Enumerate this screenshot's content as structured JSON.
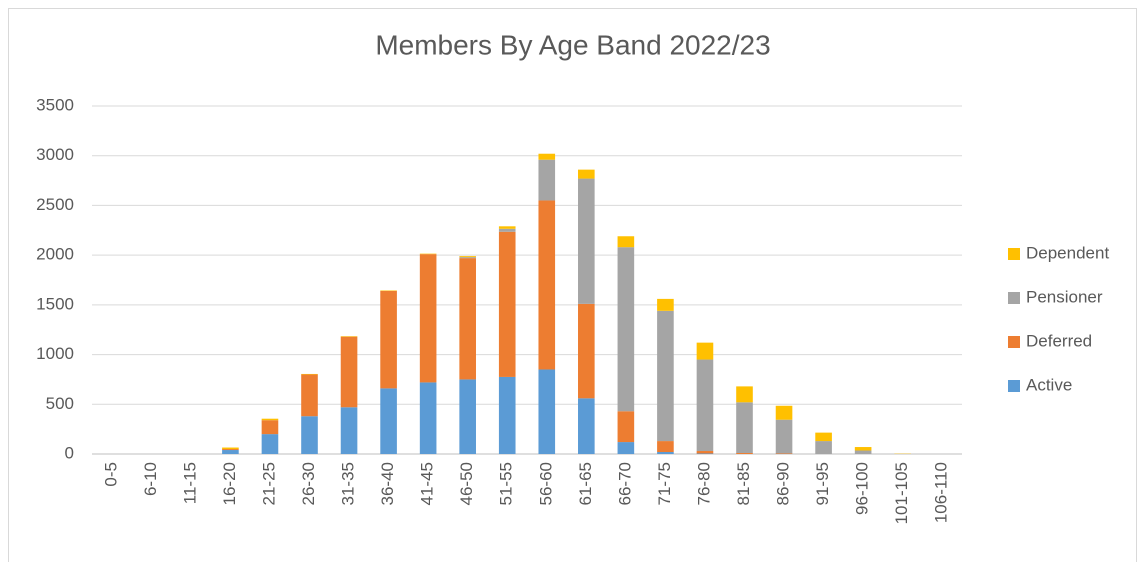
{
  "chart_data": {
    "type": "bar",
    "stacked": true,
    "title": "Members By Age Band 2022/23",
    "categories": [
      "0-5",
      "6-10",
      "11-15",
      "16-20",
      "21-25",
      "26-30",
      "31-35",
      "36-40",
      "41-45",
      "46-50",
      "51-55",
      "56-60",
      "61-65",
      "66-70",
      "71-75",
      "76-80",
      "81-85",
      "86-90",
      "91-95",
      "96-100",
      "101-105",
      "106-110"
    ],
    "series": [
      {
        "name": "Active",
        "color": "#5b9bd5",
        "values": [
          0,
          0,
          0,
          40,
          200,
          380,
          470,
          660,
          720,
          750,
          775,
          850,
          560,
          120,
          20,
          5,
          0,
          0,
          0,
          0,
          0,
          0
        ]
      },
      {
        "name": "Deferred",
        "color": "#ed7d31",
        "values": [
          0,
          0,
          0,
          10,
          140,
          420,
          710,
          980,
          1290,
          1220,
          1460,
          1700,
          950,
          310,
          110,
          25,
          10,
          5,
          0,
          0,
          0,
          0
        ]
      },
      {
        "name": "Pensioner",
        "color": "#a5a5a5",
        "values": [
          0,
          0,
          0,
          0,
          0,
          0,
          0,
          0,
          0,
          10,
          30,
          410,
          1260,
          1650,
          1310,
          920,
          510,
          340,
          130,
          35,
          2,
          0
        ]
      },
      {
        "name": "Dependent",
        "color": "#ffc000",
        "values": [
          0,
          0,
          0,
          15,
          15,
          5,
          5,
          5,
          5,
          10,
          25,
          60,
          90,
          110,
          120,
          170,
          160,
          140,
          85,
          35,
          3,
          0
        ]
      }
    ],
    "ylim": [
      0,
      3500
    ],
    "yticks": [
      0,
      500,
      1000,
      1500,
      2000,
      2500,
      3000,
      3500
    ],
    "grid": true,
    "legend": "right"
  }
}
